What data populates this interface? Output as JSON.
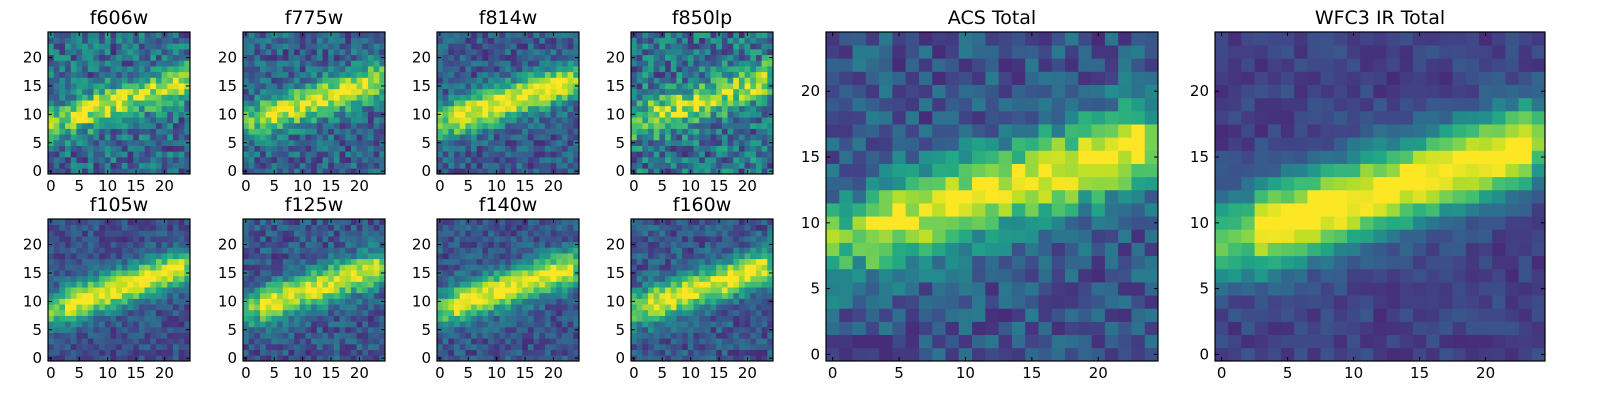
{
  "chart_data": [
    {
      "type": "heatmap",
      "title": "f606w",
      "grid": [
        25,
        25
      ],
      "xticks": [
        "0",
        "5",
        "10",
        "15",
        "20"
      ],
      "yticks": [
        "0",
        "5",
        "10",
        "15",
        "20"
      ],
      "colormap": "viridis",
      "seed": 11,
      "signal": 0.55,
      "noise": 0.45
    },
    {
      "type": "heatmap",
      "title": "f775w",
      "grid": [
        25,
        25
      ],
      "xticks": [
        "0",
        "5",
        "10",
        "15",
        "20"
      ],
      "yticks": [
        "0",
        "5",
        "10",
        "15",
        "20"
      ],
      "colormap": "viridis",
      "seed": 23,
      "signal": 0.65,
      "noise": 0.38
    },
    {
      "type": "heatmap",
      "title": "f814w",
      "grid": [
        25,
        25
      ],
      "xticks": [
        "0",
        "5",
        "10",
        "15",
        "20"
      ],
      "yticks": [
        "0",
        "5",
        "10",
        "15",
        "20"
      ],
      "colormap": "viridis",
      "seed": 37,
      "signal": 0.72,
      "noise": 0.33
    },
    {
      "type": "heatmap",
      "title": "f850lp",
      "grid": [
        25,
        25
      ],
      "xticks": [
        "0",
        "5",
        "10",
        "15",
        "20"
      ],
      "yticks": [
        "0",
        "5",
        "10",
        "15",
        "20"
      ],
      "colormap": "viridis",
      "seed": 41,
      "signal": 0.5,
      "noise": 0.5
    },
    {
      "type": "heatmap",
      "title": "f105w",
      "grid": [
        25,
        25
      ],
      "xticks": [
        "0",
        "5",
        "10",
        "15",
        "20"
      ],
      "yticks": [
        "0",
        "5",
        "10",
        "15",
        "20"
      ],
      "colormap": "viridis",
      "seed": 53,
      "signal": 0.75,
      "noise": 0.25
    },
    {
      "type": "heatmap",
      "title": "f125w",
      "grid": [
        25,
        25
      ],
      "xticks": [
        "0",
        "5",
        "10",
        "15",
        "20"
      ],
      "yticks": [
        "0",
        "5",
        "10",
        "15",
        "20"
      ],
      "colormap": "viridis",
      "seed": 67,
      "signal": 0.7,
      "noise": 0.3
    },
    {
      "type": "heatmap",
      "title": "f140w",
      "grid": [
        25,
        25
      ],
      "xticks": [
        "0",
        "5",
        "10",
        "15",
        "20"
      ],
      "yticks": [
        "0",
        "5",
        "10",
        "15",
        "20"
      ],
      "colormap": "viridis",
      "seed": 71,
      "signal": 0.75,
      "noise": 0.28
    },
    {
      "type": "heatmap",
      "title": "f160w",
      "grid": [
        25,
        25
      ],
      "xticks": [
        "0",
        "5",
        "10",
        "15",
        "20"
      ],
      "yticks": [
        "0",
        "5",
        "10",
        "15",
        "20"
      ],
      "colormap": "viridis",
      "seed": 83,
      "signal": 0.72,
      "noise": 0.3
    },
    {
      "type": "heatmap",
      "title": "ACS Total",
      "grid": [
        25,
        25
      ],
      "xticks": [
        "0",
        "5",
        "10",
        "15",
        "20"
      ],
      "yticks": [
        "0",
        "5",
        "10",
        "15",
        "20"
      ],
      "colormap": "viridis",
      "seed": 97,
      "signal": 0.7,
      "noise": 0.3
    },
    {
      "type": "heatmap",
      "title": "WFC3 IR Total",
      "grid": [
        25,
        25
      ],
      "xticks": [
        "0",
        "5",
        "10",
        "15",
        "20"
      ],
      "yticks": [
        "0",
        "5",
        "10",
        "15",
        "20"
      ],
      "colormap": "viridis",
      "seed": 101,
      "signal": 0.85,
      "noise": 0.15
    }
  ]
}
